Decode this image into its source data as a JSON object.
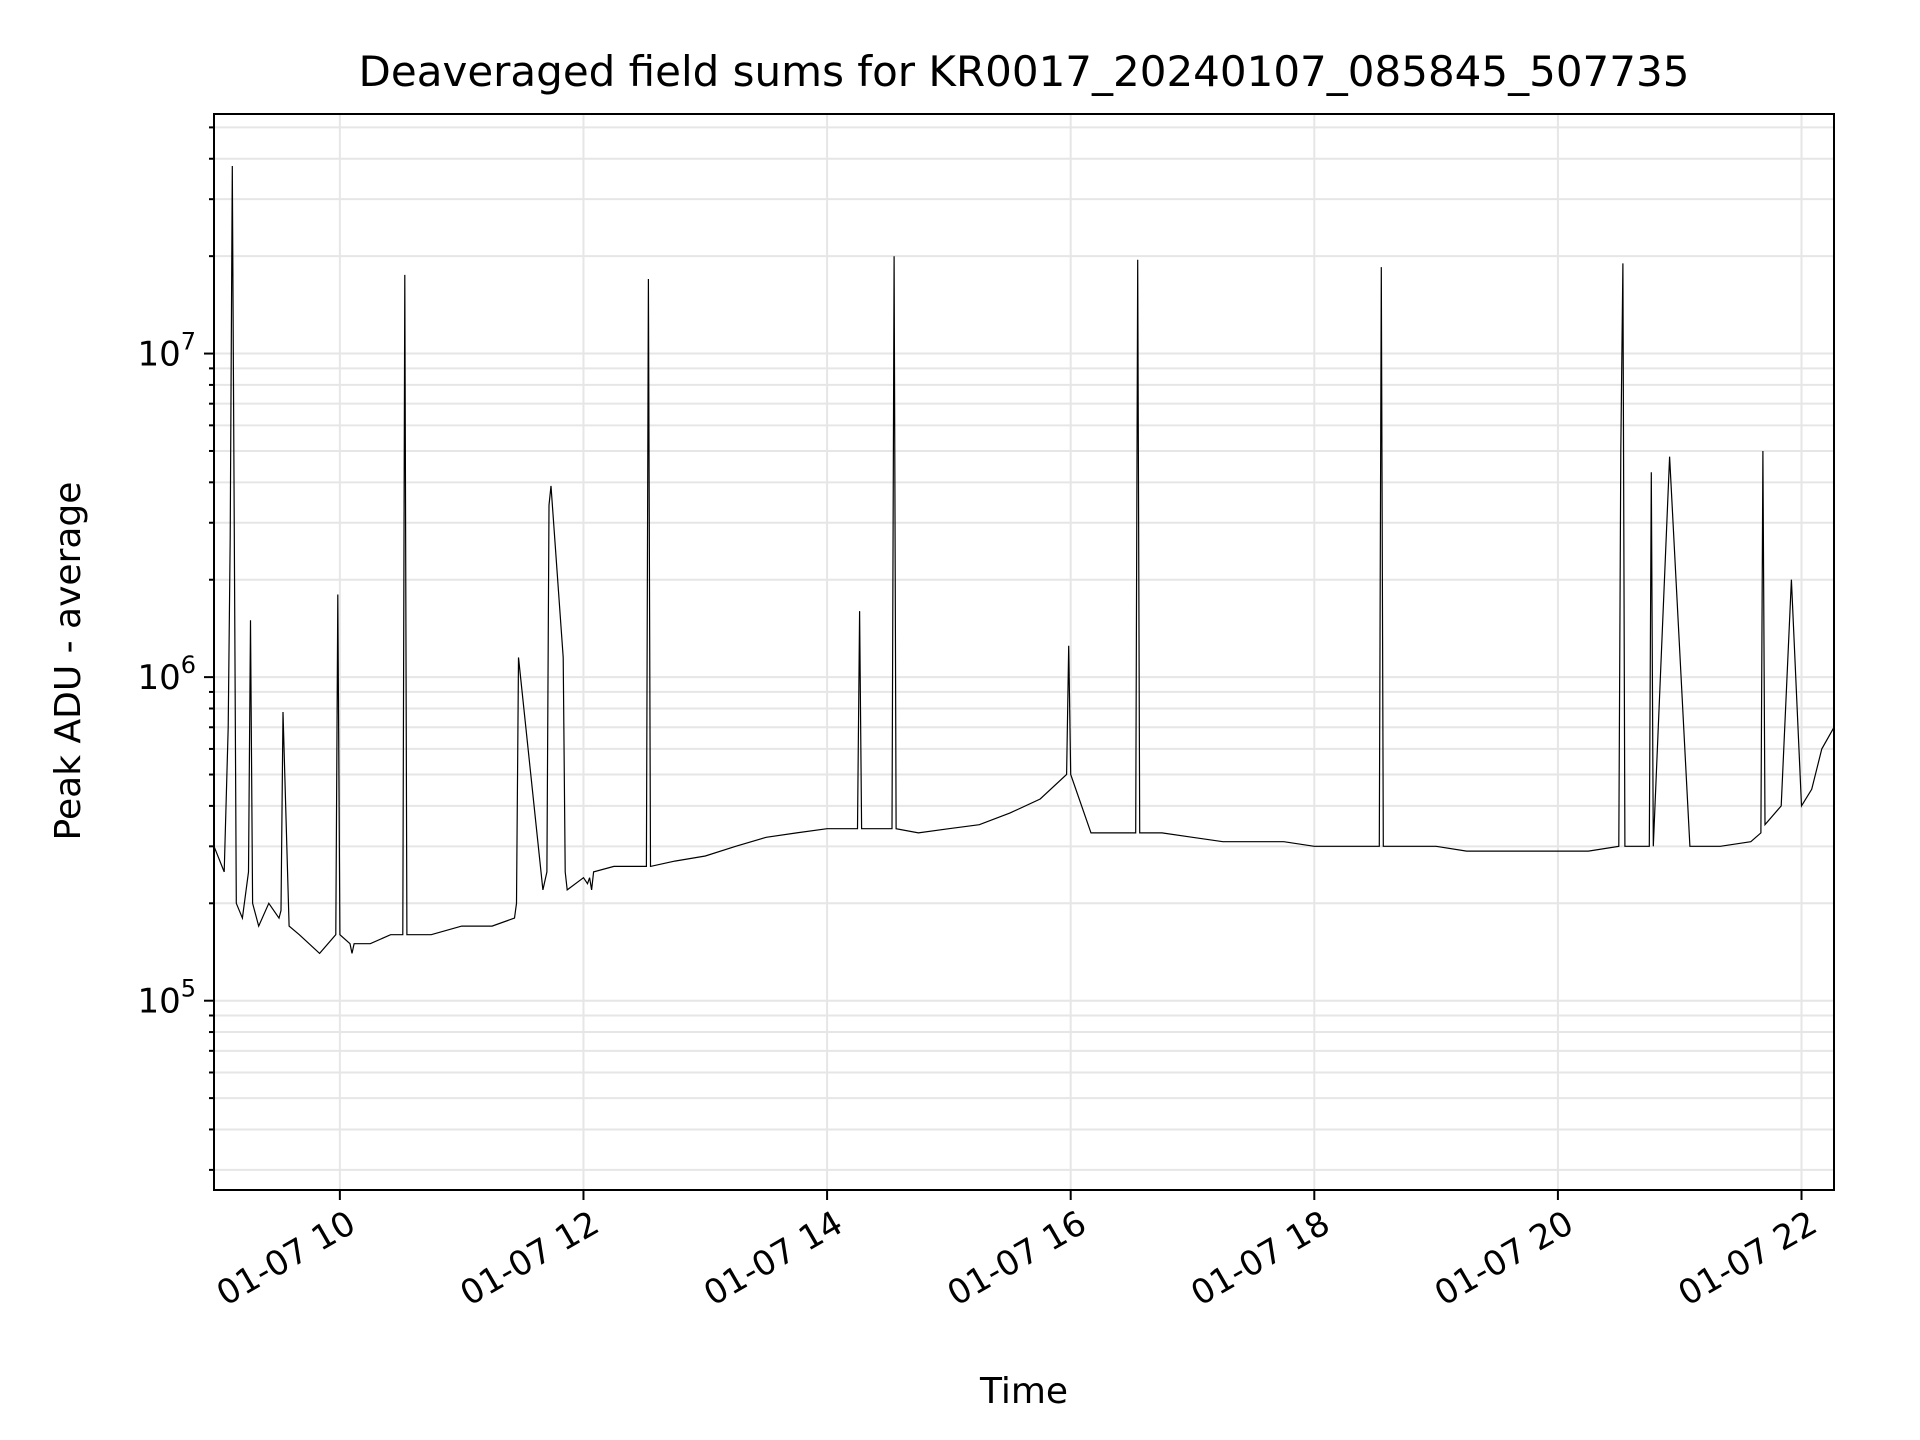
{
  "chart_data": {
    "type": "line",
    "title": "Deaveraged field sums for KR0017_20240107_085845_507735",
    "xlabel": "Time",
    "ylabel": "Peak ADU - average",
    "yscale": "log",
    "ylim": [
      26000,
      55000000
    ],
    "xlim": [
      "2024-01-07 08:58",
      "2024-01-07 22:16"
    ],
    "x_ticks": [
      {
        "value": "2024-01-07 10:00",
        "label": "01-07 10"
      },
      {
        "value": "2024-01-07 12:00",
        "label": "01-07 12"
      },
      {
        "value": "2024-01-07 14:00",
        "label": "01-07 14"
      },
      {
        "value": "2024-01-07 16:00",
        "label": "01-07 16"
      },
      {
        "value": "2024-01-07 18:00",
        "label": "01-07 18"
      },
      {
        "value": "2024-01-07 20:00",
        "label": "01-07 20"
      },
      {
        "value": "2024-01-07 22:00",
        "label": "01-07 22"
      }
    ],
    "y_ticks": [
      {
        "value": 100000,
        "base": "10",
        "exp": "5"
      },
      {
        "value": 1000000,
        "base": "10",
        "exp": "6"
      },
      {
        "value": 10000000,
        "base": "10",
        "exp": "7"
      }
    ],
    "grid": "both",
    "series": [
      {
        "color": "#000000",
        "x": [
          "2024-01-07 08:58",
          "2024-01-07 09:03",
          "2024-01-07 09:05",
          "2024-01-07 09:06",
          "2024-01-07 09:07",
          "2024-01-07 09:09",
          "2024-01-07 09:12",
          "2024-01-07 09:15",
          "2024-01-07 09:16",
          "2024-01-07 09:17",
          "2024-01-07 09:20",
          "2024-01-07 09:25",
          "2024-01-07 09:30",
          "2024-01-07 09:31",
          "2024-01-07 09:32",
          "2024-01-07 09:35",
          "2024-01-07 09:40",
          "2024-01-07 09:50",
          "2024-01-07 09:58",
          "2024-01-07 09:59",
          "2024-01-07 10:00",
          "2024-01-07 10:05",
          "2024-01-07 10:06",
          "2024-01-07 10:07",
          "2024-01-07 10:15",
          "2024-01-07 10:25",
          "2024-01-07 10:31",
          "2024-01-07 10:32",
          "2024-01-07 10:33",
          "2024-01-07 10:45",
          "2024-01-07 11:00",
          "2024-01-07 11:15",
          "2024-01-07 11:26",
          "2024-01-07 11:27",
          "2024-01-07 11:28",
          "2024-01-07 11:40",
          "2024-01-07 11:42",
          "2024-01-07 11:43",
          "2024-01-07 11:44",
          "2024-01-07 11:50",
          "2024-01-07 11:51",
          "2024-01-07 11:52",
          "2024-01-07 12:00",
          "2024-01-07 12:02",
          "2024-01-07 12:03",
          "2024-01-07 12:04",
          "2024-01-07 12:05",
          "2024-01-07 12:15",
          "2024-01-07 12:31",
          "2024-01-07 12:32",
          "2024-01-07 12:33",
          "2024-01-07 12:45",
          "2024-01-07 13:00",
          "2024-01-07 13:15",
          "2024-01-07 13:30",
          "2024-01-07 13:45",
          "2024-01-07 14:00",
          "2024-01-07 14:15",
          "2024-01-07 14:16",
          "2024-01-07 14:17",
          "2024-01-07 14:32",
          "2024-01-07 14:33",
          "2024-01-07 14:34",
          "2024-01-07 14:45",
          "2024-01-07 15:00",
          "2024-01-07 15:15",
          "2024-01-07 15:30",
          "2024-01-07 15:45",
          "2024-01-07 15:58",
          "2024-01-07 15:59",
          "2024-01-07 16:00",
          "2024-01-07 16:10",
          "2024-01-07 16:32",
          "2024-01-07 16:33",
          "2024-01-07 16:34",
          "2024-01-07 16:45",
          "2024-01-07 17:00",
          "2024-01-07 17:15",
          "2024-01-07 17:30",
          "2024-01-07 17:45",
          "2024-01-07 18:00",
          "2024-01-07 18:15",
          "2024-01-07 18:32",
          "2024-01-07 18:33",
          "2024-01-07 18:34",
          "2024-01-07 18:45",
          "2024-01-07 19:00",
          "2024-01-07 19:15",
          "2024-01-07 19:30",
          "2024-01-07 19:45",
          "2024-01-07 20:00",
          "2024-01-07 20:15",
          "2024-01-07 20:30",
          "2024-01-07 20:31",
          "2024-01-07 20:32",
          "2024-01-07 20:33",
          "2024-01-07 20:45",
          "2024-01-07 20:46",
          "2024-01-07 20:47",
          "2024-01-07 20:55",
          "2024-01-07 21:05",
          "2024-01-07 21:20",
          "2024-01-07 21:35",
          "2024-01-07 21:40",
          "2024-01-07 21:41",
          "2024-01-07 21:42",
          "2024-01-07 21:50",
          "2024-01-07 21:55",
          "2024-01-07 22:00",
          "2024-01-07 22:05",
          "2024-01-07 22:10",
          "2024-01-07 22:16"
        ],
        "values": [
          300000,
          250000,
          700000,
          2700000,
          38000000,
          200000,
          180000,
          250000,
          1500000,
          200000,
          170000,
          200000,
          180000,
          190000,
          780000,
          170000,
          160000,
          140000,
          160000,
          1800000,
          160000,
          150000,
          140000,
          150000,
          150000,
          160000,
          160000,
          17500000,
          160000,
          160000,
          170000,
          170000,
          180000,
          200000,
          1150000,
          220000,
          250000,
          3400000,
          3900000,
          1150000,
          250000,
          220000,
          240000,
          230000,
          240000,
          220000,
          250000,
          260000,
          260000,
          17000000,
          260000,
          270000,
          280000,
          300000,
          320000,
          330000,
          340000,
          340000,
          1600000,
          340000,
          340000,
          20000000,
          340000,
          330000,
          340000,
          350000,
          380000,
          420000,
          500000,
          1250000,
          500000,
          330000,
          330000,
          19500000,
          330000,
          330000,
          320000,
          310000,
          310000,
          310000,
          300000,
          300000,
          300000,
          18500000,
          300000,
          300000,
          300000,
          290000,
          290000,
          290000,
          290000,
          290000,
          300000,
          5000000,
          19000000,
          300000,
          300000,
          4300000,
          300000,
          4800000,
          300000,
          300000,
          310000,
          330000,
          5000000,
          350000,
          400000,
          2000000,
          400000,
          450000,
          600000,
          700000
        ]
      }
    ]
  }
}
